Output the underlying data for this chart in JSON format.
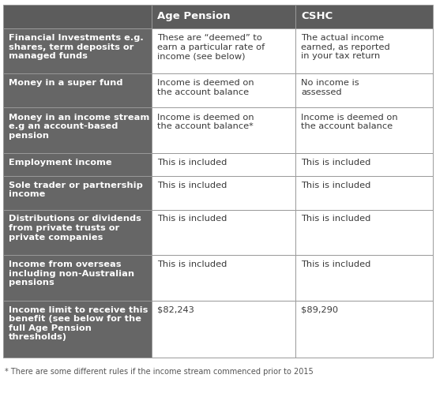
{
  "header_col1": "",
  "header_col2": "Age Pension",
  "header_col3": "CSHC",
  "header_bg": "#5c5c5c",
  "header_text_color": "#ffffff",
  "row_bg_dark": "#666666",
  "row_bg_light": "#ffffff",
  "row_text_dark": "#ffffff",
  "row_text_light": "#3a3a3a",
  "border_color": "#999999",
  "footnote_color": "#555555",
  "rows": [
    {
      "col1": "Financial Investments e.g.\nshares, term deposits or\nmanaged funds",
      "col2": "These are “deemed” to\nearn a particular rate of\nincome (see below)",
      "col3": "The actual income\nearned, as reported\nin your tax return"
    },
    {
      "col1": "Money in a super fund",
      "col2": "Income is deemed on\nthe account balance",
      "col3": "No income is\nassessed"
    },
    {
      "col1": "Money in an income stream\ne.g an account-based\npension",
      "col2": "Income is deemed on\nthe account balance*",
      "col3": "Income is deemed on\nthe account balance"
    },
    {
      "col1": "Employment income",
      "col2": "This is included",
      "col3": "This is included"
    },
    {
      "col1": "Sole trader or partnership\nincome",
      "col2": "This is included",
      "col3": "This is included"
    },
    {
      "col1": "Distributions or dividends\nfrom private trusts or\nprivate companies",
      "col2": "This is included",
      "col3": "This is included"
    },
    {
      "col1": "Income from overseas\nincluding non-Australian\npensions",
      "col2": "This is included",
      "col3": "This is included"
    },
    {
      "col1": "Income limit to receive this\nbenefit (see below for the\nfull Age Pension\nthresholds)",
      "col2": "$82,243",
      "col3": "$89,290"
    }
  ],
  "footnote": "* There are some different rules if the income stream commenced prior to 2015",
  "figsize": [
    5.52,
    5.22
  ],
  "dpi": 100
}
